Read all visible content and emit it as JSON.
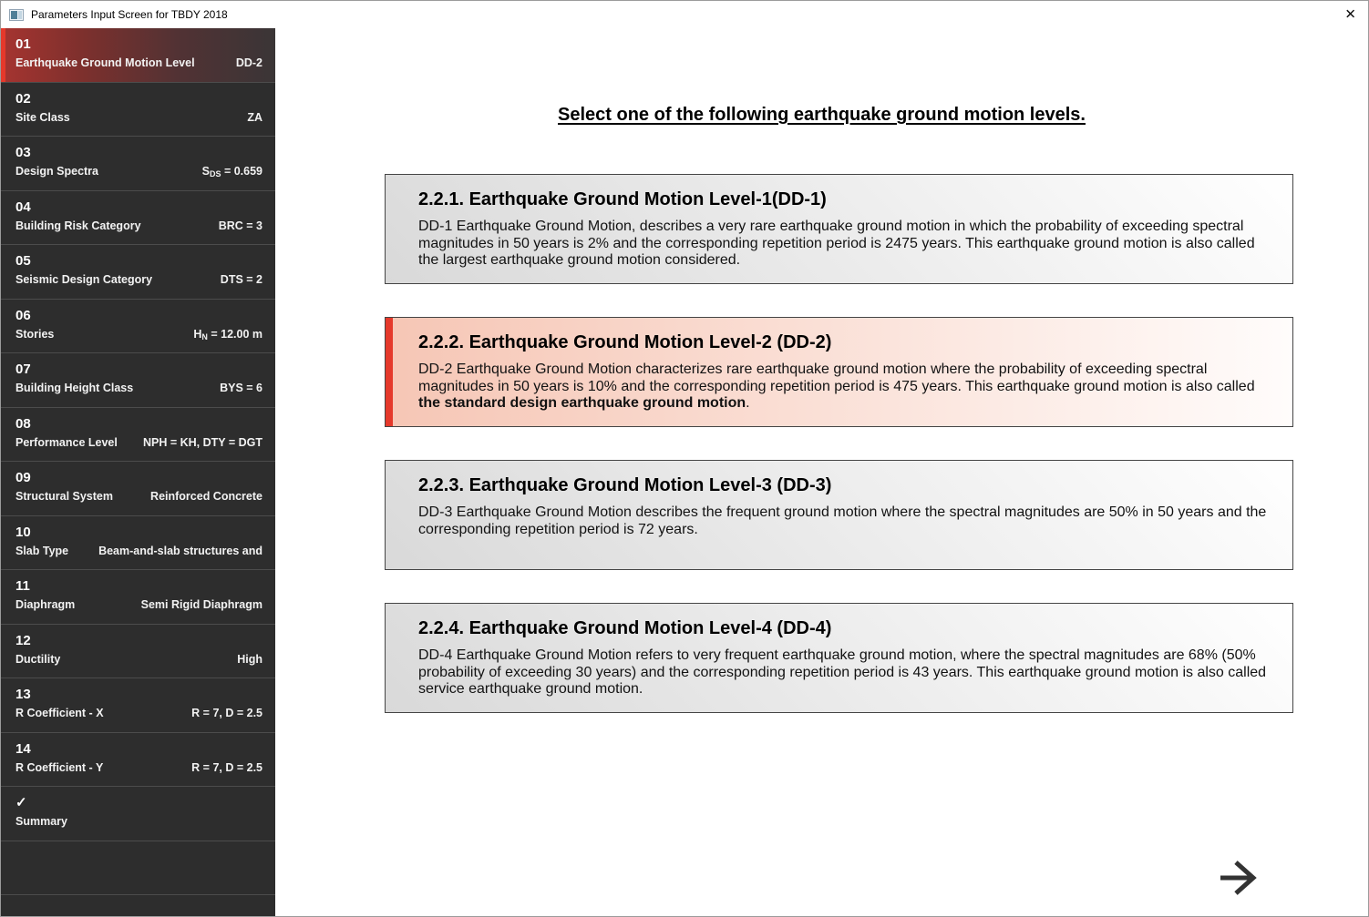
{
  "window": {
    "title": "Parameters Input Screen for TBDY 2018",
    "close_glyph": "✕"
  },
  "colors": {
    "accent_red": "#e5392b",
    "sidebar_bg": "#2d2d2d",
    "sidebar_divider": "#4c4c4c",
    "selected_grad_start": "#a63430",
    "selected_grad_end": "#3a3536",
    "card_border": "#454545",
    "card_gray_start": "#d9d9d9",
    "card_gray_end": "#ffffff",
    "card_pink_start": "#f6c6b5",
    "card_pink_end": "#fffcfb",
    "arrow_color": "#333333"
  },
  "sidebar": {
    "items": [
      {
        "number": "01",
        "label": "Earthquake Ground Motion Level",
        "value": "DD-2",
        "selected": true
      },
      {
        "number": "02",
        "label": "Site Class",
        "value": "ZA"
      },
      {
        "number": "03",
        "label": "Design Spectra",
        "value_prefix": "S",
        "value_sub": "DS",
        "value_suffix": " = 0.659"
      },
      {
        "number": "04",
        "label": "Building Risk Category",
        "value": "BRC = 3"
      },
      {
        "number": "05",
        "label": "Seismic Design Category",
        "value": "DTS = 2"
      },
      {
        "number": "06",
        "label": "Stories",
        "value_prefix": "H",
        "value_sub": "N",
        "value_suffix": " = 12.00 m"
      },
      {
        "number": "07",
        "label": "Building Height Class",
        "value": "BYS = 6"
      },
      {
        "number": "08",
        "label": "Performance Level",
        "value": "NPH = KH, DTY = DGT"
      },
      {
        "number": "09",
        "label": "Structural System",
        "value": "Reinforced Concrete"
      },
      {
        "number": "10",
        "label": "Slab Type",
        "value": "Beam-and-slab structures and"
      },
      {
        "number": "11",
        "label": "Diaphragm",
        "value": "Semi Rigid Diaphragm"
      },
      {
        "number": "12",
        "label": "Ductility",
        "value": "High"
      },
      {
        "number": "13",
        "label": "R Coefficient - X",
        "value": "R = 7, D = 2.5"
      },
      {
        "number": "14",
        "label": "R Coefficient - Y",
        "value": "R = 7, D = 2.5"
      },
      {
        "number": "✓",
        "label": "Summary",
        "value": "",
        "is_check": true
      }
    ]
  },
  "main": {
    "heading": "Select one of the following earthquake ground motion levels.",
    "cards": [
      {
        "title": "2.2.1. Earthquake Ground Motion Level-1(DD-1)",
        "selected": false,
        "body_parts": [
          {
            "text": "DD-1 Earthquake Ground Motion, describes a very rare earthquake ground motion in which the probability of exceeding spectral magnitudes in 50 years is 2% and the corresponding repetition period is 2475 years. This earthquake ground motion is also called the largest earthquake ground motion considered.",
            "bold": false
          }
        ]
      },
      {
        "title": "2.2.2. Earthquake Ground Motion Level-2 (DD-2)",
        "selected": true,
        "body_parts": [
          {
            "text": "DD-2 Earthquake Ground Motion characterizes rare earthquake ground motion where the probability of exceeding spectral magnitudes in 50 years is 10% and the corresponding repetition period is 475 years. This earthquake ground motion is also called ",
            "bold": false
          },
          {
            "text": "the standard design earthquake ground motion",
            "bold": true
          },
          {
            "text": ".",
            "bold": false
          }
        ]
      },
      {
        "title": "2.2.3. Earthquake Ground Motion Level-3 (DD-3)",
        "selected": false,
        "body_parts": [
          {
            "text": "DD-3 Earthquake Ground Motion describes the frequent ground motion where the spectral magnitudes are 50% in 50 years and the corresponding repetition period is 72 years.",
            "bold": false
          }
        ]
      },
      {
        "title": "2.2.4. Earthquake Ground Motion Level-4 (DD-4)",
        "selected": false,
        "body_parts": [
          {
            "text": "DD-4 Earthquake Ground Motion refers to very frequent earthquake ground motion, where the spectral magnitudes are 68% (50% probability of exceeding 30 years) and the corresponding repetition period is 43 years. This earthquake ground motion is also called service earthquake ground motion.",
            "bold": false
          }
        ]
      }
    ]
  }
}
